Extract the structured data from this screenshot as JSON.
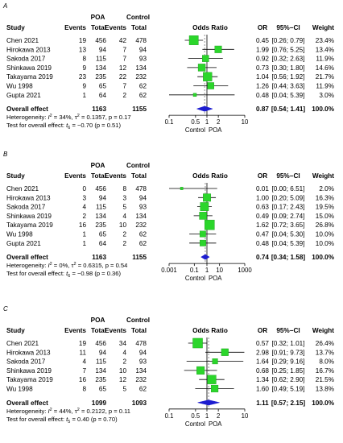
{
  "chart_data": [
    {
      "type": "forest",
      "panel": "A",
      "columns": {
        "study": "Study",
        "poa_group": "POA",
        "control_group": "Control",
        "events": "Events",
        "total": "Total",
        "plot": "Odds Ratio",
        "or": "OR",
        "ci": "95%−CI",
        "weight": "Weight"
      },
      "studies": [
        {
          "name": "Chen 2021",
          "poa_events": "19",
          "poa_total": "456",
          "ctrl_events": "42",
          "ctrl_total": "478",
          "or": 0.45,
          "lo": 0.26,
          "hi": 0.79,
          "or_text": "0.45",
          "ci_text": "[0.26; 0.79]",
          "weight_text": "23.4%",
          "weight": 23.4
        },
        {
          "name": "Hirokawa 2013",
          "poa_events": "13",
          "poa_total": "94",
          "ctrl_events": "7",
          "ctrl_total": "94",
          "or": 1.99,
          "lo": 0.76,
          "hi": 5.25,
          "or_text": "1.99",
          "ci_text": "[0.76; 5.25]",
          "weight_text": "13.4%",
          "weight": 13.4
        },
        {
          "name": "Sakoda 2017",
          "poa_events": "8",
          "poa_total": "115",
          "ctrl_events": "7",
          "ctrl_total": "93",
          "or": 0.92,
          "lo": 0.32,
          "hi": 2.63,
          "or_text": "0.92",
          "ci_text": "[0.32; 2.63]",
          "weight_text": "11.9%",
          "weight": 11.9
        },
        {
          "name": "Shinkawa 2019",
          "poa_events": "9",
          "poa_total": "134",
          "ctrl_events": "12",
          "ctrl_total": "134",
          "or": 0.73,
          "lo": 0.3,
          "hi": 1.8,
          "or_text": "0.73",
          "ci_text": "[0.30; 1.80]",
          "weight_text": "14.6%",
          "weight": 14.6
        },
        {
          "name": "Takayama 2019",
          "poa_events": "23",
          "poa_total": "235",
          "ctrl_events": "22",
          "ctrl_total": "232",
          "or": 1.04,
          "lo": 0.56,
          "hi": 1.92,
          "or_text": "1.04",
          "ci_text": "[0.56; 1.92]",
          "weight_text": "21.7%",
          "weight": 21.7
        },
        {
          "name": "Wu 1998",
          "poa_events": "9",
          "poa_total": "65",
          "ctrl_events": "7",
          "ctrl_total": "62",
          "or": 1.26,
          "lo": 0.44,
          "hi": 3.63,
          "or_text": "1.26",
          "ci_text": "[0.44; 3.63]",
          "weight_text": "11.9%",
          "weight": 11.9
        },
        {
          "name": "Gupta 2021",
          "poa_events": "1",
          "poa_total": "64",
          "ctrl_events": "2",
          "ctrl_total": "62",
          "or": 0.48,
          "lo": 0.04,
          "hi": 5.39,
          "or_text": "0.48",
          "ci_text": "[0.04; 5.39]",
          "weight_text": "3.0%",
          "weight": 3.0
        }
      ],
      "overall": {
        "label": "Overall effect",
        "poa_total": "1163",
        "ctrl_total": "1155",
        "or": 0.87,
        "lo": 0.54,
        "hi": 1.41,
        "or_text": "0.87",
        "ci_text": "[0.54; 1.41]",
        "weight_text": "100.0%"
      },
      "heterogeneity": {
        "prefix": "Heterogeneity: ",
        "i2_label": "I",
        "i2_exp": "2",
        "i2_rest": " = 34%, τ",
        "tau_exp": "2",
        "tau_rest": " = 0.1357, p = 0.17"
      },
      "test": {
        "prefix": "Test for overall effect: ",
        "t_var": "t",
        "t_sub": "6",
        "rest": " = −0.70 (p = 0.51)"
      },
      "axis": {
        "min": 0.1,
        "max": 10,
        "ticks": [
          0.1,
          0.5,
          1,
          2,
          10
        ],
        "tick_labels": [
          "0.1",
          "0.5",
          "1",
          "2",
          "10"
        ],
        "scale": "log",
        "left_label": "Control",
        "right_label": "POA"
      }
    },
    {
      "type": "forest",
      "panel": "B",
      "columns": {
        "study": "Study",
        "poa_group": "POA",
        "control_group": "Control",
        "events": "Events",
        "total": "Total",
        "plot": "Odds Ratio",
        "or": "OR",
        "ci": "95%−CI",
        "weight": "Weight"
      },
      "studies": [
        {
          "name": "Chen 2021",
          "poa_events": "0",
          "poa_total": "456",
          "ctrl_events": "8",
          "ctrl_total": "478",
          "or": 0.01,
          "lo": 0.0,
          "hi": 6.51,
          "or_text": "0.01",
          "ci_text": "[0.00; 6.51]",
          "weight_text": "2.0%",
          "weight": 2.0
        },
        {
          "name": "Hirokawa 2013",
          "poa_events": "3",
          "poa_total": "94",
          "ctrl_events": "3",
          "ctrl_total": "94",
          "or": 1.0,
          "lo": 0.2,
          "hi": 5.09,
          "or_text": "1.00",
          "ci_text": "[0.20; 5.09]",
          "weight_text": "16.3%",
          "weight": 16.3
        },
        {
          "name": "Sakoda 2017",
          "poa_events": "4",
          "poa_total": "115",
          "ctrl_events": "5",
          "ctrl_total": "93",
          "or": 0.63,
          "lo": 0.17,
          "hi": 2.43,
          "or_text": "0.63",
          "ci_text": "[0.17; 2.43]",
          "weight_text": "19.5%",
          "weight": 19.5
        },
        {
          "name": "Shinkawa 2019",
          "poa_events": "2",
          "poa_total": "134",
          "ctrl_events": "4",
          "ctrl_total": "134",
          "or": 0.49,
          "lo": 0.09,
          "hi": 2.74,
          "or_text": "0.49",
          "ci_text": "[0.09; 2.74]",
          "weight_text": "15.0%",
          "weight": 15.0
        },
        {
          "name": "Takayama 2019",
          "poa_events": "16",
          "poa_total": "235",
          "ctrl_events": "10",
          "ctrl_total": "232",
          "or": 1.62,
          "lo": 0.72,
          "hi": 3.65,
          "or_text": "1.62",
          "ci_text": "[0.72; 3.65]",
          "weight_text": "26.8%",
          "weight": 26.8
        },
        {
          "name": "Wu 1998",
          "poa_events": "1",
          "poa_total": "65",
          "ctrl_events": "2",
          "ctrl_total": "62",
          "or": 0.47,
          "lo": 0.04,
          "hi": 5.3,
          "or_text": "0.47",
          "ci_text": "[0.04; 5.30]",
          "weight_text": "10.0%",
          "weight": 10.0
        },
        {
          "name": "Gupta 2021",
          "poa_events": "1",
          "poa_total": "64",
          "ctrl_events": "2",
          "ctrl_total": "62",
          "or": 0.48,
          "lo": 0.04,
          "hi": 5.39,
          "or_text": "0.48",
          "ci_text": "[0.04; 5.39]",
          "weight_text": "10.0%",
          "weight": 10.0
        }
      ],
      "overall": {
        "label": "Overall effect",
        "poa_total": "1163",
        "ctrl_total": "1155",
        "or": 0.74,
        "lo": 0.34,
        "hi": 1.58,
        "or_text": "0.74",
        "ci_text": "[0.34; 1.58]",
        "weight_text": "100.0%"
      },
      "heterogeneity": {
        "prefix": "Heterogeneity: ",
        "i2_label": "I",
        "i2_exp": "2",
        "i2_rest": " = 0%, τ",
        "tau_exp": "2",
        "tau_rest": " = 0.6315, p = 0.54"
      },
      "test": {
        "prefix": "Test for overall effect: ",
        "t_var": "t",
        "t_sub": "6",
        "rest": " = −0.98 (p = 0.36)"
      },
      "axis": {
        "min": 0.001,
        "max": 1000,
        "ticks": [
          0.001,
          0.1,
          1,
          10,
          1000
        ],
        "tick_labels": [
          "0.001",
          "0.1",
          "1",
          "10",
          "1000"
        ],
        "scale": "log",
        "left_label": "Control",
        "right_label": "POA"
      }
    },
    {
      "type": "forest",
      "panel": "C",
      "columns": {
        "study": "Study",
        "poa_group": "POA",
        "control_group": "Control",
        "events": "Events",
        "total": "Total",
        "plot": "Odds Ratio",
        "or": "OR",
        "ci": "95%−CI",
        "weight": "Weight"
      },
      "studies": [
        {
          "name": "Chen 2021",
          "poa_events": "19",
          "poa_total": "456",
          "ctrl_events": "34",
          "ctrl_total": "478",
          "or": 0.57,
          "lo": 0.32,
          "hi": 1.01,
          "or_text": "0.57",
          "ci_text": "[0.32; 1.01]",
          "weight_text": "26.4%",
          "weight": 26.4
        },
        {
          "name": "Hirokawa 2013",
          "poa_events": "11",
          "poa_total": "94",
          "ctrl_events": "4",
          "ctrl_total": "94",
          "or": 2.98,
          "lo": 0.91,
          "hi": 9.73,
          "or_text": "2.98",
          "ci_text": "[0.91; 9.73]",
          "weight_text": "13.7%",
          "weight": 13.7
        },
        {
          "name": "Sakoda 2017",
          "poa_events": "4",
          "poa_total": "115",
          "ctrl_events": "2",
          "ctrl_total": "93",
          "or": 1.64,
          "lo": 0.29,
          "hi": 9.16,
          "or_text": "1.64",
          "ci_text": "[0.29; 9.16]",
          "weight_text": "8.0%",
          "weight": 8.0
        },
        {
          "name": "Shinkawa 2019",
          "poa_events": "7",
          "poa_total": "134",
          "ctrl_events": "10",
          "ctrl_total": "134",
          "or": 0.68,
          "lo": 0.25,
          "hi": 1.85,
          "or_text": "0.68",
          "ci_text": "[0.25; 1.85]",
          "weight_text": "16.7%",
          "weight": 16.7
        },
        {
          "name": "Takayama 2019",
          "poa_events": "16",
          "poa_total": "235",
          "ctrl_events": "12",
          "ctrl_total": "232",
          "or": 1.34,
          "lo": 0.62,
          "hi": 2.9,
          "or_text": "1.34",
          "ci_text": "[0.62; 2.90]",
          "weight_text": "21.5%",
          "weight": 21.5
        },
        {
          "name": "Wu 1998",
          "poa_events": "8",
          "poa_total": "65",
          "ctrl_events": "5",
          "ctrl_total": "62",
          "or": 1.6,
          "lo": 0.49,
          "hi": 5.19,
          "or_text": "1.60",
          "ci_text": "[0.49; 5.19]",
          "weight_text": "13.8%",
          "weight": 13.8
        }
      ],
      "overall": {
        "label": "Overall effect",
        "poa_total": "1099",
        "ctrl_total": "1093",
        "or": 1.11,
        "lo": 0.57,
        "hi": 2.15,
        "or_text": "1.11",
        "ci_text": "[0.57; 2.15]",
        "weight_text": "100.0%"
      },
      "heterogeneity": {
        "prefix": "Heterogeneity: ",
        "i2_label": "I",
        "i2_exp": "2",
        "i2_rest": " = 44%, τ",
        "tau_exp": "2",
        "tau_rest": " = 0.2122, p = 0.11"
      },
      "test": {
        "prefix": "Test for overall effect: ",
        "t_var": "t",
        "t_sub": "5",
        "rest": " = 0.40 (p = 0.70)"
      },
      "axis": {
        "min": 0.1,
        "max": 10,
        "ticks": [
          0.1,
          0.5,
          1,
          2,
          10
        ],
        "tick_labels": [
          "0.1",
          "0.5",
          "1",
          "2",
          "10"
        ],
        "scale": "log",
        "left_label": "Control",
        "right_label": "POA"
      }
    }
  ],
  "colors": {
    "square": "#2bd62b",
    "square_stroke": "#1a9a1a",
    "diamond": "#1c1cd0",
    "ci_line": "#000000",
    "ref_line": "#000000",
    "dashed": "#777777"
  }
}
